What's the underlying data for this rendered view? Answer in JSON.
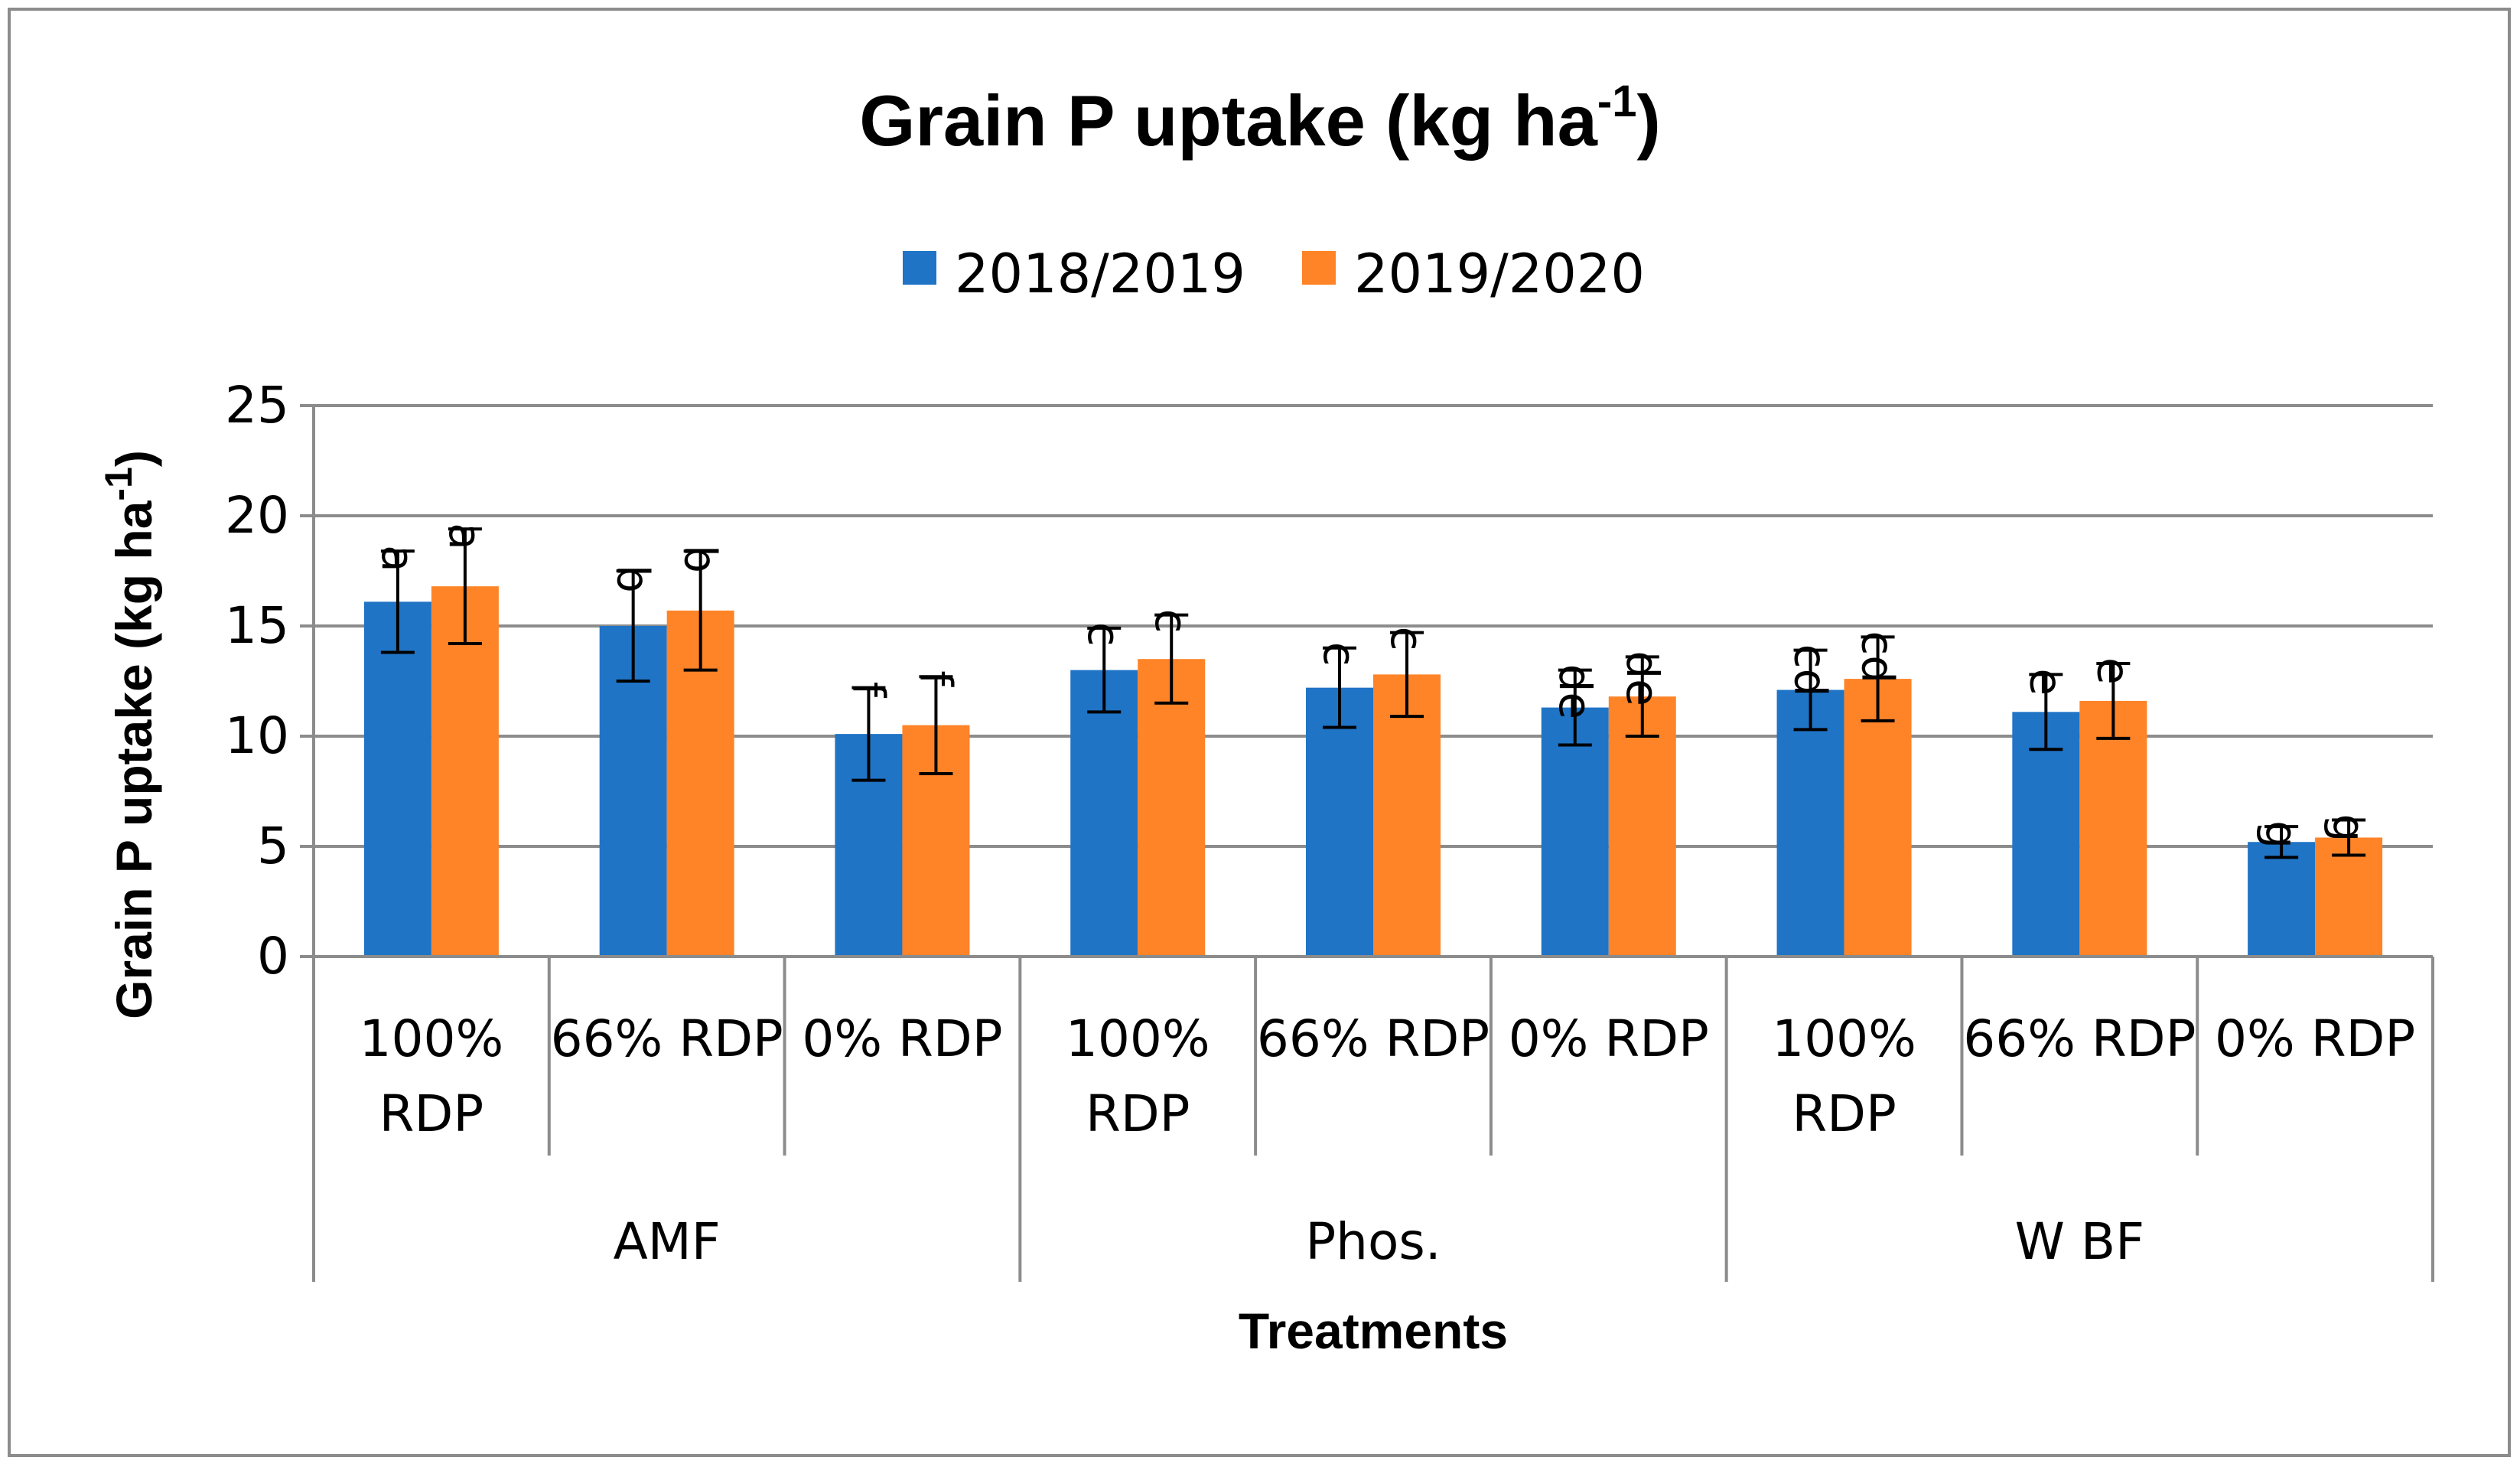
{
  "chart_data": {
    "type": "bar",
    "title": "Grain P uptake (kg ha",
    "title_sup": "-1",
    "title_close": ")",
    "ylabel": "Grain P uptake (kg ha",
    "ylabel_sup": "-1",
    "ylabel_close": ")",
    "xlabel": "Treatments",
    "ylim": [
      0,
      25
    ],
    "yticks": [
      0,
      5,
      10,
      15,
      20,
      25
    ],
    "grid": true,
    "legend_position": "top",
    "groups": [
      {
        "name": "AMF",
        "categories": [
          [
            "100%",
            "RDP"
          ],
          [
            "66% RDP"
          ],
          [
            "0% RDP"
          ]
        ]
      },
      {
        "name": "Phos.",
        "categories": [
          [
            "100%",
            "RDP"
          ],
          [
            "66% RDP"
          ],
          [
            "0% RDP"
          ]
        ]
      },
      {
        "name": "W BF",
        "categories": [
          [
            "100%",
            "RDP"
          ],
          [
            "66% RDP"
          ],
          [
            "0% RDP"
          ]
        ]
      }
    ],
    "series": [
      {
        "name": "2018/2019",
        "color": "#1F74C6",
        "values": [
          16.1,
          15.0,
          10.1,
          13.0,
          12.2,
          11.3,
          12.1,
          11.1,
          5.2
        ],
        "errors": [
          2.3,
          2.5,
          2.1,
          1.9,
          1.8,
          1.7,
          1.8,
          1.7,
          0.7
        ],
        "labels": [
          "a",
          "b",
          "f",
          "c",
          "c",
          "de",
          "cd",
          "e",
          "g"
        ]
      },
      {
        "name": "2019/2020",
        "color": "#FF8327",
        "values": [
          16.8,
          15.7,
          10.5,
          13.5,
          12.8,
          11.8,
          12.6,
          11.6,
          5.4
        ],
        "errors": [
          2.6,
          2.7,
          2.2,
          2.0,
          1.9,
          1.8,
          1.9,
          1.7,
          0.8
        ],
        "labels": [
          "a",
          "b",
          "f",
          "c",
          "c",
          "de",
          "cd",
          "e",
          "g"
        ]
      }
    ]
  }
}
